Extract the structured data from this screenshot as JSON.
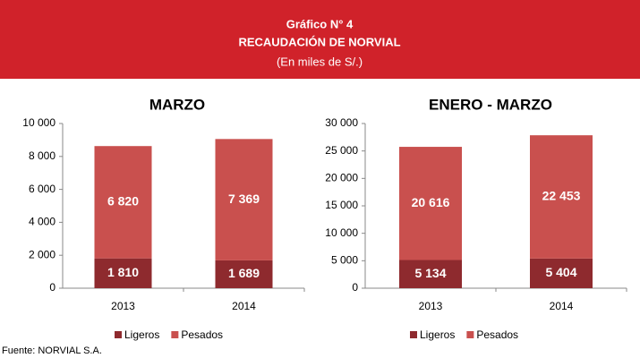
{
  "header": {
    "title": "Gráfico N° 4",
    "subtitle": "RECAUDACIÓN DE NORVIAL",
    "note": "(En miles de S/.)"
  },
  "chart_data": [
    {
      "type": "bar",
      "stacked": true,
      "title": "MARZO",
      "categories": [
        "2013",
        "2014"
      ],
      "series": [
        {
          "name": "Ligeros",
          "color": "#8e2a2e",
          "values": [
            1810,
            1689
          ],
          "value_labels": [
            "1 810",
            "1 689"
          ]
        },
        {
          "name": "Pesados",
          "color": "#c9504e",
          "values": [
            6820,
            7369
          ],
          "value_labels": [
            "6 820",
            "7 369"
          ]
        }
      ],
      "ylim": [
        0,
        10000
      ],
      "yticks": [
        0,
        {
          "value": 2000,
          "label": "2 000"
        },
        {
          "value": 4000,
          "label": "4 000"
        },
        {
          "value": 6000,
          "label": "6 000"
        },
        {
          "value": 8000,
          "label": "8 000"
        },
        {
          "value": 10000,
          "label": "10 000"
        }
      ],
      "legend": "bottom"
    },
    {
      "type": "bar",
      "stacked": true,
      "title": "ENERO - MARZO",
      "categories": [
        "2013",
        "2014"
      ],
      "series": [
        {
          "name": "Ligeros",
          "color": "#8e2a2e",
          "values": [
            5134,
            5404
          ],
          "value_labels": [
            "5 134",
            "5 404"
          ]
        },
        {
          "name": "Pesados",
          "color": "#c9504e",
          "values": [
            20616,
            22453
          ],
          "value_labels": [
            "20 616",
            "22 453"
          ]
        }
      ],
      "ylim": [
        0,
        30000
      ],
      "yticks": [
        0,
        {
          "value": 5000,
          "label": "5 000"
        },
        {
          "value": 10000,
          "label": "10 000"
        },
        {
          "value": 15000,
          "label": "15 000"
        },
        {
          "value": 20000,
          "label": "20 000"
        },
        {
          "value": 25000,
          "label": "25 000"
        },
        {
          "value": 30000,
          "label": "30 000"
        }
      ],
      "legend": "bottom"
    }
  ],
  "source": "Fuente: NORVIAL S.A."
}
